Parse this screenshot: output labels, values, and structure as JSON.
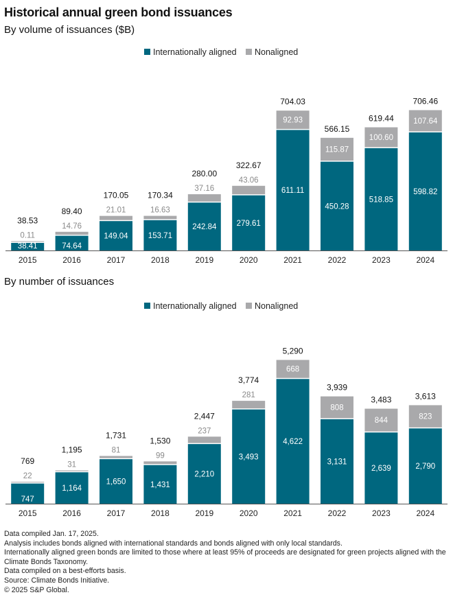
{
  "title": "Historical annual green bond issuances",
  "colors": {
    "aligned": "#00677F",
    "nonaligned": "#A9A9AB",
    "axis": "#555555"
  },
  "legend": {
    "aligned": "Internationally aligned",
    "nonaligned": "Nonaligned"
  },
  "chart_data": [
    {
      "type": "bar",
      "stacked": true,
      "title": "By volume of issuances ($B)",
      "categories": [
        "2015",
        "2016",
        "2017",
        "2018",
        "2019",
        "2020",
        "2021",
        "2022",
        "2023",
        "2024"
      ],
      "series": [
        {
          "name": "Internationally aligned",
          "values": [
            38.41,
            74.64,
            149.04,
            153.71,
            242.84,
            279.61,
            611.11,
            450.28,
            518.85,
            598.82
          ],
          "labels": [
            "38.41",
            "74.64",
            "149.04",
            "153.71",
            "242.84",
            "279.61",
            "611.11",
            "450.28",
            "518.85",
            "598.82"
          ]
        },
        {
          "name": "Nonaligned",
          "values": [
            0.11,
            14.76,
            21.01,
            16.63,
            37.16,
            43.06,
            92.93,
            115.87,
            100.6,
            107.64
          ],
          "labels": [
            "0.11",
            "14.76",
            "21.01",
            "16.63",
            "37.16",
            "43.06",
            "92.93",
            "115.87",
            "100.60",
            "107.64"
          ]
        }
      ],
      "totals": [
        "38.53",
        "89.40",
        "170.05",
        "170.34",
        "280.00",
        "322.67",
        "704.03",
        "566.15",
        "619.44",
        "706.46"
      ],
      "ylim": [
        0,
        706.46
      ],
      "legend_position": "top-center",
      "grid": false
    },
    {
      "type": "bar",
      "stacked": true,
      "title": "By number of issuances",
      "categories": [
        "2015",
        "2016",
        "2017",
        "2018",
        "2019",
        "2020",
        "2021",
        "2022",
        "2023",
        "2024"
      ],
      "series": [
        {
          "name": "Internationally aligned",
          "values": [
            747,
            1164,
            1650,
            1431,
            2210,
            3493,
            4622,
            3131,
            2639,
            2790
          ],
          "labels": [
            "747",
            "1,164",
            "1,650",
            "1,431",
            "2,210",
            "3,493",
            "4,622",
            "3,131",
            "2,639",
            "2,790"
          ]
        },
        {
          "name": "Nonaligned",
          "values": [
            22,
            31,
            81,
            99,
            237,
            281,
            668,
            808,
            844,
            823
          ],
          "labels": [
            "22",
            "31",
            "81",
            "99",
            "237",
            "281",
            "668",
            "808",
            "844",
            "823"
          ]
        }
      ],
      "totals": [
        "769",
        "1,195",
        "1,731",
        "1,530",
        "2,447",
        "3,774",
        "5,290",
        "3,939",
        "3,483",
        "3,613"
      ],
      "ylim": [
        0,
        5290
      ],
      "legend_position": "top-center",
      "grid": false
    }
  ],
  "notes": [
    "Data compiled Jan. 17, 2025.",
    "Analysis includes bonds aligned with international standards and bonds aligned with only local standards.",
    "Internationally aligned green bonds are limited to those where at least 95% of proceeds are designated for green projects aligned with the Climate Bonds Taxonomy.",
    "Data compiled on a best-efforts basis.",
    "Source: Climate Bonds Initiative.",
    "© 2025 S&P Global."
  ]
}
